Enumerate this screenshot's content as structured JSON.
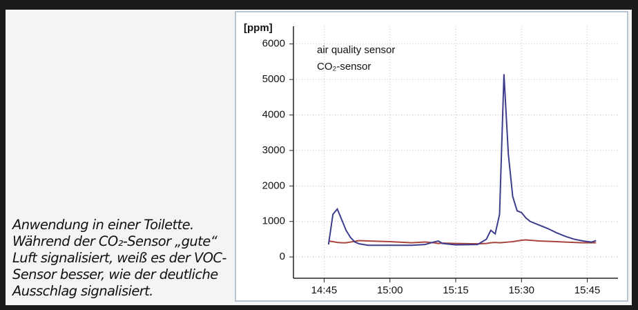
{
  "caption": "Anwendung in einer Toilette. Während der CO₂-Sensor „gute“ Luft signalisiert, weiß es der VOC-Sensor besser, wie der deutliche Ausschlag signalisiert.",
  "chart_data": {
    "type": "line",
    "y_label": "[ppm]",
    "x": [
      "14:46",
      "14:47",
      "14:48",
      "14:49",
      "14:50",
      "14:51",
      "14:52",
      "14:53",
      "14:55",
      "15:00",
      "15:05",
      "15:08",
      "15:10",
      "15:11",
      "15:12",
      "15:15",
      "15:20",
      "15:22",
      "15:23",
      "15:24",
      "15:25",
      "15:26",
      "15:27",
      "15:28",
      "15:29",
      "15:30",
      "15:31",
      "15:32",
      "15:34",
      "15:36",
      "15:38",
      "15:40",
      "15:42",
      "15:44",
      "15:46",
      "15:47"
    ],
    "series": [
      {
        "name": "air quality sensor",
        "color": "#3c3c8c",
        "values": [
          350,
          1200,
          1350,
          1050,
          750,
          550,
          420,
          370,
          330,
          330,
          330,
          350,
          420,
          450,
          380,
          340,
          350,
          500,
          750,
          650,
          1200,
          5150,
          2900,
          1700,
          1300,
          1250,
          1100,
          1000,
          900,
          800,
          680,
          580,
          500,
          450,
          420,
          460
        ]
      },
      {
        "name": "CO₂-sensor",
        "color": "#a8443a",
        "values": [
          450,
          430,
          410,
          400,
          400,
          420,
          440,
          460,
          450,
          430,
          400,
          420,
          400,
          380,
          390,
          380,
          370,
          380,
          400,
          410,
          400,
          410,
          420,
          430,
          450,
          470,
          480,
          470,
          450,
          440,
          430,
          420,
          410,
          400,
          400,
          400
        ]
      }
    ],
    "xlim": [
      "14:38",
      "15:52"
    ],
    "xticks": [
      "14:45",
      "15:00",
      "15:15",
      "15:30",
      "15:45"
    ],
    "ylim": [
      -600,
      6500
    ],
    "yticks": [
      0,
      1000,
      2000,
      3000,
      4000,
      5000,
      6000
    ],
    "grid": true
  }
}
